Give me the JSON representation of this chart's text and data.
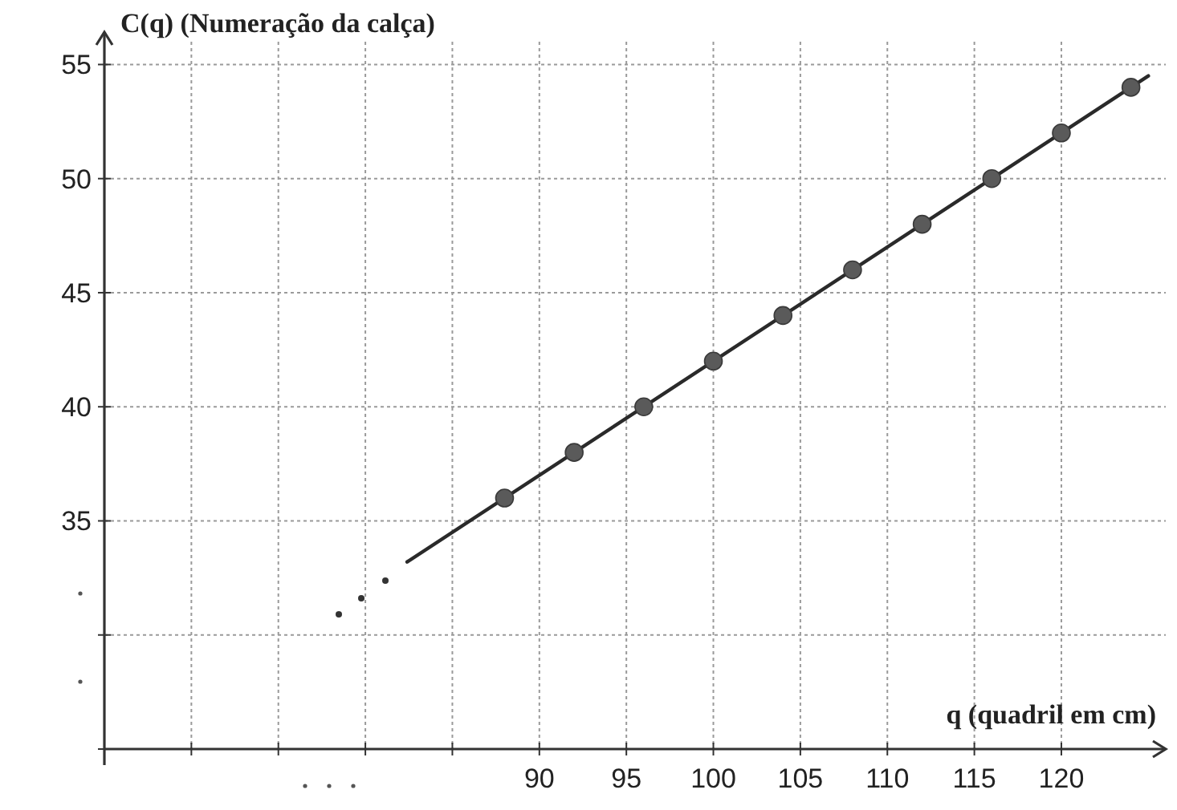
{
  "chart_data": {
    "type": "scatter",
    "xlabel": "q (quadril em cm)",
    "ylabel": "C(q) (Numeração da calça)",
    "xlim": [
      65,
      126
    ],
    "ylim": [
      25,
      56
    ],
    "xticks": [
      {
        "value": 70,
        "label": null
      },
      {
        "value": 75,
        "label": null
      },
      {
        "value": 80,
        "label": null
      },
      {
        "value": 85,
        "label": null
      },
      90,
      95,
      100,
      105,
      110,
      115,
      120
    ],
    "yticks": [
      {
        "value": 25,
        "label": null
      },
      {
        "value": 30,
        "label": null
      },
      35,
      40,
      45,
      50,
      55
    ],
    "grid": true,
    "marker": "circle",
    "series": [
      {
        "type": "line",
        "color": "#2a2a2a",
        "x": [
          82.4,
          125
        ],
        "values": [
          33.2,
          54.5
        ],
        "marker": "none"
      },
      {
        "color": "#5a5a5a",
        "x": [
          88,
          92,
          96,
          100,
          104,
          108,
          112,
          116,
          120,
          124
        ],
        "values": [
          36,
          38,
          40,
          42,
          44,
          46,
          48,
          50,
          52,
          54
        ]
      }
    ]
  }
}
